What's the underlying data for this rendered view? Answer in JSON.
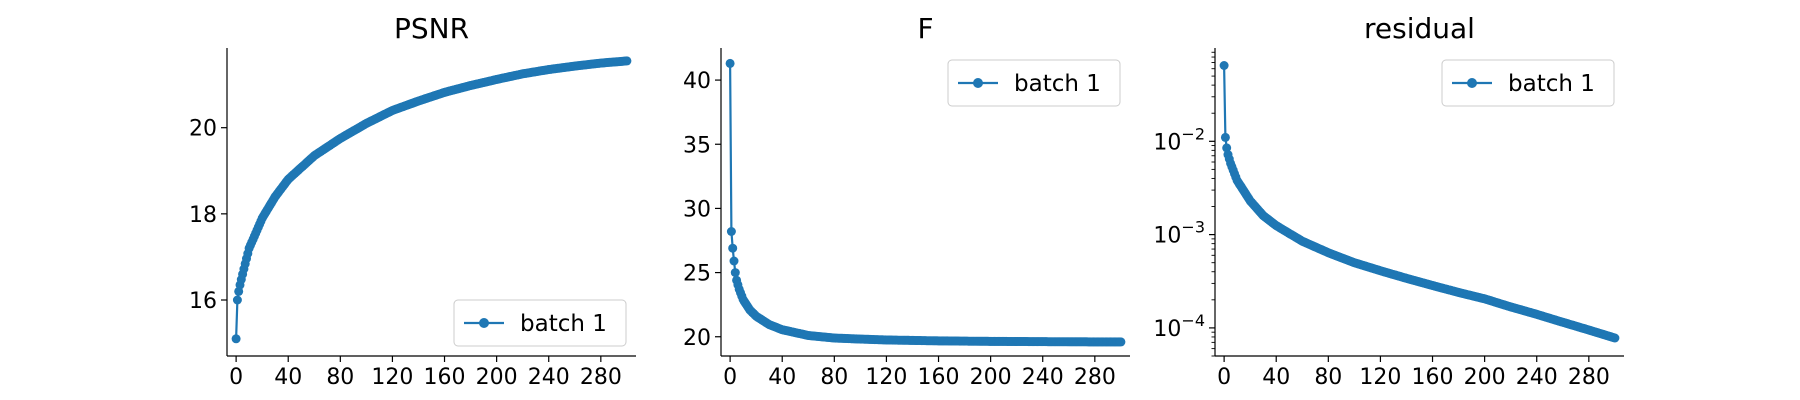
{
  "chart_data": [
    {
      "type": "line",
      "title": "PSNR",
      "xlabel": "",
      "ylabel": "",
      "xlim": [
        -7,
        307
      ],
      "ylim": [
        14.7,
        21.85
      ],
      "yscale": "linear",
      "xticks": [
        0,
        40,
        80,
        120,
        160,
        200,
        240,
        280
      ],
      "yticks": [
        16,
        18,
        20
      ],
      "ytick_labels": [
        "16",
        "18",
        "20"
      ],
      "legend_position": "lower right",
      "grid": false,
      "series": [
        {
          "name": "batch 1",
          "color": "#1f77b4",
          "marker": "circle",
          "points": [
            [
              0,
              15.1
            ],
            [
              1,
              16.0
            ],
            [
              2,
              16.2
            ],
            [
              3,
              16.35
            ],
            [
              5,
              16.6
            ],
            [
              10,
              17.2
            ],
            [
              20,
              17.9
            ],
            [
              30,
              18.4
            ],
            [
              40,
              18.8
            ],
            [
              60,
              19.35
            ],
            [
              80,
              19.75
            ],
            [
              100,
              20.1
            ],
            [
              120,
              20.4
            ],
            [
              140,
              20.62
            ],
            [
              160,
              20.82
            ],
            [
              180,
              20.98
            ],
            [
              200,
              21.12
            ],
            [
              220,
              21.25
            ],
            [
              240,
              21.35
            ],
            [
              260,
              21.43
            ],
            [
              280,
              21.5
            ],
            [
              300,
              21.55
            ]
          ]
        }
      ]
    },
    {
      "type": "line",
      "title": "F",
      "xlabel": "",
      "ylabel": "",
      "xlim": [
        -7,
        307
      ],
      "ylim": [
        18.5,
        42.5
      ],
      "yscale": "linear",
      "xticks": [
        0,
        40,
        80,
        120,
        160,
        200,
        240,
        280
      ],
      "yticks": [
        20,
        25,
        30,
        35,
        40
      ],
      "ytick_labels": [
        "20",
        "25",
        "30",
        "35",
        "40"
      ],
      "legend_position": "upper right",
      "grid": false,
      "series": [
        {
          "name": "batch 1",
          "color": "#1f77b4",
          "marker": "circle",
          "points": [
            [
              0,
              41.3
            ],
            [
              1,
              28.2
            ],
            [
              2,
              26.9
            ],
            [
              3,
              25.9
            ],
            [
              4,
              25.0
            ],
            [
              5,
              24.4
            ],
            [
              7,
              23.7
            ],
            [
              10,
              22.9
            ],
            [
              15,
              22.1
            ],
            [
              20,
              21.6
            ],
            [
              30,
              20.95
            ],
            [
              40,
              20.55
            ],
            [
              60,
              20.1
            ],
            [
              80,
              19.9
            ],
            [
              100,
              19.82
            ],
            [
              120,
              19.75
            ],
            [
              160,
              19.68
            ],
            [
              200,
              19.64
            ],
            [
              240,
              19.62
            ],
            [
              280,
              19.6
            ],
            [
              300,
              19.6
            ]
          ]
        }
      ]
    },
    {
      "type": "line",
      "title": "residual",
      "xlabel": "",
      "ylabel": "",
      "xlim": [
        -7,
        307
      ],
      "ylim": [
        5e-05,
        0.1
      ],
      "yscale": "log",
      "xticks": [
        0,
        40,
        80,
        120,
        160,
        200,
        240,
        280
      ],
      "yticks": [
        0.0001,
        0.001,
        0.01
      ],
      "ytick_labels": [
        [
          "10",
          "−4"
        ],
        [
          "10",
          "−3"
        ],
        [
          "10",
          "−2"
        ]
      ],
      "legend_position": "upper right",
      "grid": false,
      "series": [
        {
          "name": "batch 1",
          "color": "#1f77b4",
          "marker": "circle",
          "points": [
            [
              0,
              0.065
            ],
            [
              1,
              0.011
            ],
            [
              2,
              0.0085
            ],
            [
              3,
              0.0072
            ],
            [
              5,
              0.0058
            ],
            [
              10,
              0.0038
            ],
            [
              20,
              0.0023
            ],
            [
              30,
              0.0016
            ],
            [
              40,
              0.00125
            ],
            [
              60,
              0.00085
            ],
            [
              80,
              0.00064
            ],
            [
              100,
              0.0005
            ],
            [
              120,
              0.00041
            ],
            [
              140,
              0.00034
            ],
            [
              160,
              0.000285
            ],
            [
              180,
              0.00024
            ],
            [
              200,
              0.000205
            ],
            [
              220,
              0.000168
            ],
            [
              240,
              0.00014
            ],
            [
              260,
              0.000115
            ],
            [
              280,
              9.5e-05
            ],
            [
              300,
              7.8e-05
            ]
          ]
        }
      ]
    }
  ]
}
